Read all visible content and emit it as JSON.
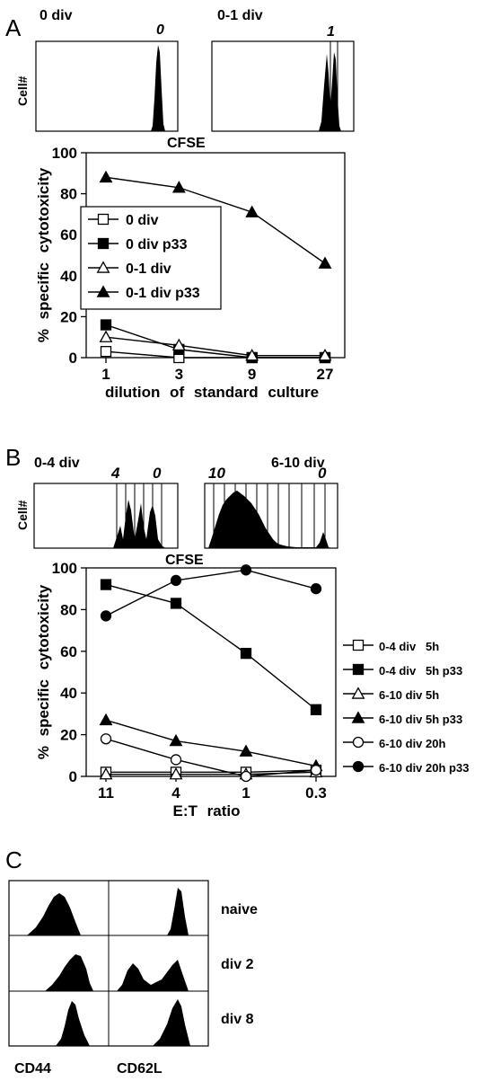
{
  "panelA": {
    "letter": "A",
    "hist_left": {
      "title": "0 div",
      "peak_labels": [
        "0"
      ]
    },
    "hist_right": {
      "title": "0-1 div",
      "peak_labels": [
        "1"
      ]
    },
    "hist_ylabel": "Cell#",
    "hist_xlabel": "CFSE"
  },
  "panelB": {
    "letter": "B",
    "hist_left": {
      "title": "0-4 div",
      "peak_labels": [
        "4",
        "0"
      ]
    },
    "hist_right": {
      "title": "6-10 div",
      "peak_labels": [
        "10",
        "0"
      ]
    },
    "hist_ylabel": "Cell#",
    "hist_xlabel": "CFSE"
  },
  "panelC": {
    "letter": "C",
    "col_labels": [
      "CD44",
      "CD62L"
    ],
    "row_labels": [
      "naive",
      "div 2",
      "div 8"
    ]
  },
  "chart_data": [
    {
      "type": "line",
      "panel": "A",
      "title": "",
      "xlabel": "dilution of standard culture",
      "ylabel": "% specific cytotoxicity",
      "categories": [
        "1",
        "3",
        "9",
        "27"
      ],
      "ylim": [
        0,
        100
      ],
      "yticks": [
        0,
        20,
        40,
        60,
        80,
        100
      ],
      "legend": "center-left",
      "series": [
        {
          "name": "0 div",
          "marker": "open-square",
          "values": [
            3,
            0,
            0,
            0
          ]
        },
        {
          "name": "0 div p33",
          "marker": "filled-square",
          "values": [
            16,
            4,
            0,
            0
          ]
        },
        {
          "name": "0-1 div",
          "marker": "open-triangle",
          "values": [
            10,
            6,
            1,
            1
          ]
        },
        {
          "name": "0-1 div p33",
          "marker": "filled-triangle",
          "values": [
            88,
            83,
            71,
            46
          ]
        }
      ]
    },
    {
      "type": "line",
      "panel": "B",
      "title": "",
      "xlabel": "E:T ratio",
      "ylabel": "% specific cytotoxicity",
      "categories": [
        "11",
        "4",
        "1",
        "0.3"
      ],
      "ylim": [
        0,
        100
      ],
      "yticks": [
        0,
        20,
        40,
        60,
        80,
        100
      ],
      "legend": "right",
      "series": [
        {
          "name": "0-4 div   5h",
          "marker": "open-square",
          "values": [
            2,
            2,
            2,
            3
          ]
        },
        {
          "name": "0-4 div   5h p33",
          "marker": "filled-square",
          "values": [
            92,
            83,
            59,
            32
          ]
        },
        {
          "name": "6-10 div 5h",
          "marker": "open-triangle",
          "values": [
            1,
            1,
            1,
            2
          ]
        },
        {
          "name": "6-10 div 5h p33",
          "marker": "filled-triangle",
          "values": [
            27,
            17,
            12,
            5
          ]
        },
        {
          "name": "6-10 div 20h",
          "marker": "open-circle",
          "values": [
            18,
            8,
            0,
            3
          ]
        },
        {
          "name": "6-10 div 20h p33",
          "marker": "filled-circle",
          "values": [
            77,
            94,
            99,
            90
          ]
        }
      ]
    }
  ]
}
